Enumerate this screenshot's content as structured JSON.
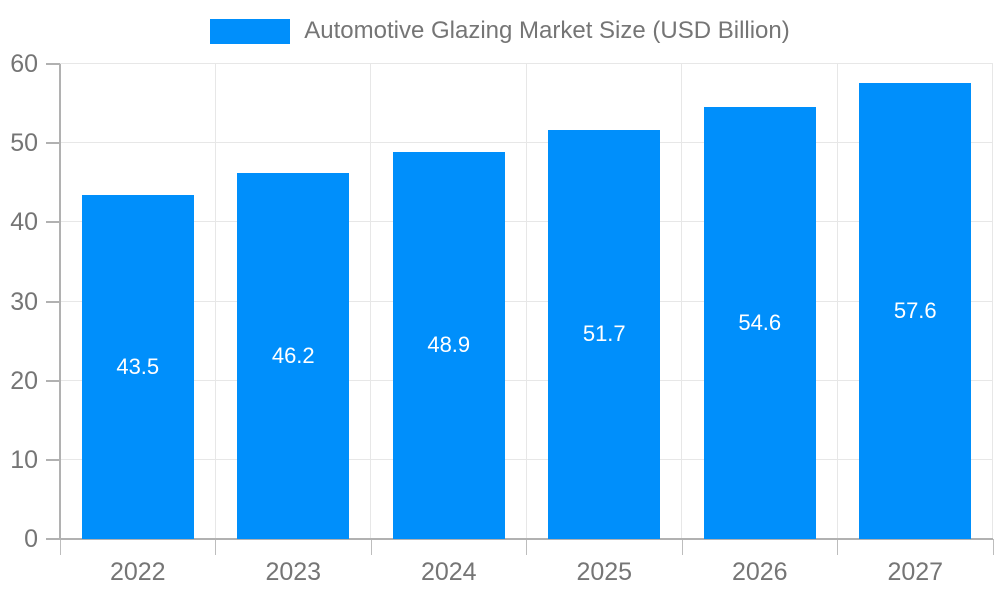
{
  "legend": {
    "label": "Automotive Glazing Market Size (USD Billion)"
  },
  "chart_data": {
    "type": "bar",
    "title": "Automotive Glazing Market Size (USD Billion)",
    "series_name": "Automotive Glazing Market Size (USD Billion)",
    "categories": [
      "2022",
      "2023",
      "2024",
      "2025",
      "2026",
      "2027"
    ],
    "values": [
      43.5,
      46.2,
      48.9,
      51.7,
      54.6,
      57.6
    ],
    "value_labels": [
      "43.5",
      "46.2",
      "48.9",
      "51.7",
      "54.6",
      "57.6"
    ],
    "xlabel": "",
    "ylabel": "",
    "ylim": [
      0,
      60
    ],
    "yticks": [
      0,
      10,
      20,
      30,
      40,
      50,
      60
    ],
    "grid": true,
    "legend_position": "top-center",
    "colors": {
      "bar": "#008FFB",
      "value_label": "#FFFFFF",
      "axis_text": "#757575",
      "gridline": "#E7E7E7",
      "axis_line": "#B1B1B1",
      "tick": "#BDBDBD",
      "background": "#FFFFFF"
    }
  }
}
